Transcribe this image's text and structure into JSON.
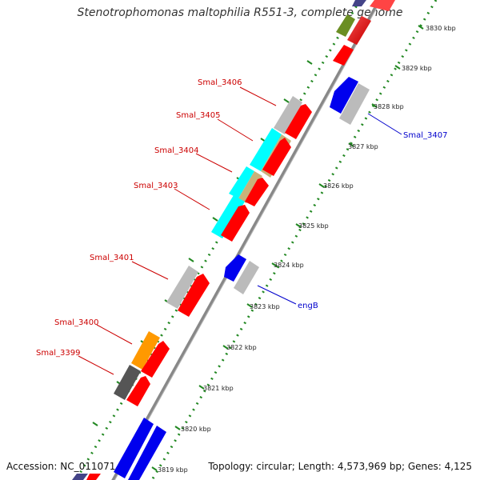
{
  "title": "Stenotrophomonas maltophilia R551-3, complete genome",
  "accession": "Accession: NC_011071",
  "topology": "Topology: circular; Length: 4,573,969 bp; Genes: 4,125",
  "scale_labels": [
    "3830 kbp",
    "3829 kbp",
    "3828 kbp",
    "3827 kbp",
    "3826 kbp",
    "3825 kbp",
    "3824 kbp",
    "3823 kbp",
    "3822 kbp",
    "3821 kbp",
    "3820 kbp",
    "3819 kbp"
  ],
  "gene_labels": [
    {
      "text": "Smal_3406",
      "color": "#cc0000"
    },
    {
      "text": "Smal_3405",
      "color": "#cc0000"
    },
    {
      "text": "Smal_3404",
      "color": "#cc0000"
    },
    {
      "text": "Smal_3403",
      "color": "#cc0000"
    },
    {
      "text": "Smal_3401",
      "color": "#cc0000"
    },
    {
      "text": "Smal_3400",
      "color": "#cc0000"
    },
    {
      "text": "Smal_3399",
      "color": "#cc0000"
    },
    {
      "text": "Smal_3407",
      "color": "#0000cc"
    },
    {
      "text": "engB",
      "color": "#0000cc"
    }
  ],
  "colors": {
    "backbone": "#888888",
    "forward_gene": "#ff0000",
    "reverse_gene": "#0000ee",
    "neutral_gene": "#bbbbbb",
    "cyan_gene": "#00ffff",
    "tan_gene": "#c8b27a",
    "orange_gene": "#ff9900",
    "dark_gene": "#555555",
    "olive_gene": "#6b8e23",
    "scale_dots": "#228822"
  }
}
